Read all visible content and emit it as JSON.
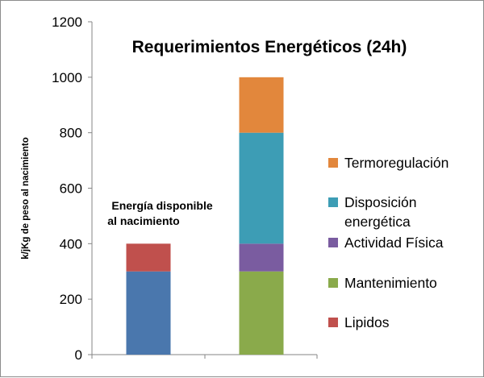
{
  "chart_data": {
    "type": "bar",
    "stacked": true,
    "title": "Requerimientos Energéticos (24h)",
    "ylabel": "k/jKg de peso al nacimiento",
    "xlabel": "",
    "ylim": [
      0,
      1200
    ],
    "yticks": [
      0,
      200,
      400,
      600,
      800,
      1000,
      1200
    ],
    "categories": [
      "",
      ""
    ],
    "grid": false,
    "legend_position": "right",
    "annotation": {
      "line1": "Energía disponible",
      "line2": "al nacimiento"
    },
    "series": [
      {
        "name": "Termoregulación",
        "color": "#e2873c",
        "values": [
          0,
          200
        ]
      },
      {
        "name": "Disposición energética",
        "color": "#3d9db5",
        "values": [
          0,
          400
        ]
      },
      {
        "name": "Actividad Física",
        "color": "#7a5ca0",
        "values": [
          0,
          100
        ]
      },
      {
        "name": "Mantenimiento",
        "color": "#8aaa4b",
        "values": [
          0,
          300
        ]
      },
      {
        "name": "Lipidos",
        "color": "#c0504d",
        "values": [
          100,
          0
        ]
      },
      {
        "name": "",
        "color": "#4a77ad",
        "values": [
          300,
          0
        ]
      }
    ],
    "stack_order": [
      5,
      4,
      3,
      2,
      1,
      0
    ],
    "legend_lines": {
      "Disposición energética": [
        "Disposición",
        "energética"
      ]
    }
  }
}
